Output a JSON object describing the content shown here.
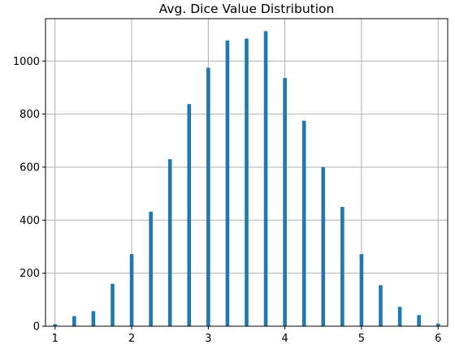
{
  "chart_data": {
    "type": "bar",
    "title": "Avg. Dice Value Distribution",
    "xlabel": "",
    "ylabel": "",
    "x": [
      1.0,
      1.25,
      1.5,
      1.75,
      2.0,
      2.25,
      2.5,
      2.75,
      3.0,
      3.25,
      3.5,
      3.75,
      4.0,
      4.25,
      4.5,
      4.75,
      5.0,
      5.25,
      5.5,
      5.75,
      6.0
    ],
    "values": [
      8,
      38,
      57,
      160,
      272,
      432,
      630,
      838,
      975,
      1078,
      1085,
      1113,
      936,
      775,
      600,
      450,
      272,
      155,
      73,
      42,
      10
    ],
    "xlim": [
      0.875,
      6.125
    ],
    "ylim": [
      0,
      1160
    ],
    "xticks": [
      1,
      2,
      3,
      4,
      5,
      6
    ],
    "yticks": [
      0,
      200,
      400,
      600,
      800,
      1000
    ],
    "grid": true,
    "bar_color": "#1f77b4",
    "grid_color": "#b0b0b0"
  }
}
